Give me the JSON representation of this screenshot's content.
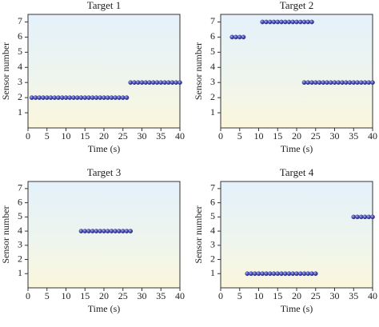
{
  "chart_data": [
    {
      "type": "scatter",
      "title": "Target 1",
      "x_label": "Time (s)",
      "y_label": "Sensor number",
      "color": "#3b3f9e",
      "x": [
        1,
        2,
        3,
        4,
        5,
        6,
        7,
        8,
        9,
        10,
        11,
        12,
        13,
        14,
        15,
        16,
        17,
        18,
        19,
        20,
        21,
        22,
        23,
        24,
        25,
        26,
        27,
        28,
        29,
        30,
        31,
        32,
        33,
        34,
        35,
        36,
        37,
        38,
        39,
        40
      ],
      "y": [
        2,
        2,
        2,
        2,
        2,
        2,
        2,
        2,
        2,
        2,
        2,
        2,
        2,
        2,
        2,
        2,
        2,
        2,
        2,
        2,
        2,
        2,
        2,
        2,
        2,
        2,
        3,
        3,
        3,
        3,
        3,
        3,
        3,
        3,
        3,
        3,
        3,
        3,
        3,
        3
      ],
      "xlim": [
        0,
        40
      ],
      "xticks": [
        0,
        5,
        10,
        15,
        20,
        25,
        30,
        35,
        40
      ],
      "ylim": [
        0,
        7.5
      ],
      "yticks": [
        1,
        2,
        3,
        4,
        5,
        6,
        7
      ]
    },
    {
      "type": "scatter",
      "title": "Target 2",
      "x_label": "Time (s)",
      "y_label": "Sensor number",
      "color": "#3b3f9e",
      "x": [
        3,
        4,
        5,
        6,
        11,
        12,
        13,
        14,
        15,
        16,
        17,
        18,
        19,
        20,
        21,
        22,
        23,
        24,
        22,
        23,
        24,
        25,
        26,
        27,
        28,
        29,
        30,
        31,
        32,
        33,
        34,
        35,
        36,
        37,
        38,
        39,
        40
      ],
      "y": [
        6,
        6,
        6,
        6,
        7,
        7,
        7,
        7,
        7,
        7,
        7,
        7,
        7,
        7,
        7,
        7,
        7,
        7,
        3,
        3,
        3,
        3,
        3,
        3,
        3,
        3,
        3,
        3,
        3,
        3,
        3,
        3,
        3,
        3,
        3,
        3,
        3
      ],
      "xlim": [
        0,
        40
      ],
      "xticks": [
        0,
        5,
        10,
        15,
        20,
        25,
        30,
        35,
        40
      ],
      "ylim": [
        0,
        7.5
      ],
      "yticks": [
        1,
        2,
        3,
        4,
        5,
        6,
        7
      ]
    },
    {
      "type": "scatter",
      "title": "Target 3",
      "x_label": "Time (s)",
      "y_label": "Sensor number",
      "color": "#3b3f9e",
      "x": [
        14,
        15,
        16,
        17,
        18,
        19,
        20,
        21,
        22,
        23,
        24,
        25,
        26,
        27
      ],
      "y": [
        4,
        4,
        4,
        4,
        4,
        4,
        4,
        4,
        4,
        4,
        4,
        4,
        4,
        4
      ],
      "xlim": [
        0,
        40
      ],
      "xticks": [
        0,
        5,
        10,
        15,
        20,
        25,
        30,
        35,
        40
      ],
      "ylim": [
        0,
        7.5
      ],
      "yticks": [
        1,
        2,
        3,
        4,
        5,
        6,
        7
      ]
    },
    {
      "type": "scatter",
      "title": "Target 4",
      "x_label": "Time (s)",
      "y_label": "Sensor number",
      "color": "#3b3f9e",
      "x": [
        7,
        8,
        9,
        10,
        11,
        12,
        13,
        14,
        15,
        16,
        17,
        18,
        19,
        20,
        21,
        22,
        23,
        24,
        25,
        35,
        36,
        37,
        38,
        39,
        40
      ],
      "y": [
        1,
        1,
        1,
        1,
        1,
        1,
        1,
        1,
        1,
        1,
        1,
        1,
        1,
        1,
        1,
        1,
        1,
        1,
        1,
        5,
        5,
        5,
        5,
        5,
        5
      ],
      "xlim": [
        0,
        40
      ],
      "xticks": [
        0,
        5,
        10,
        15,
        20,
        25,
        30,
        35,
        40
      ],
      "ylim": [
        0,
        7.5
      ],
      "yticks": [
        1,
        2,
        3,
        4,
        5,
        6,
        7
      ]
    }
  ]
}
